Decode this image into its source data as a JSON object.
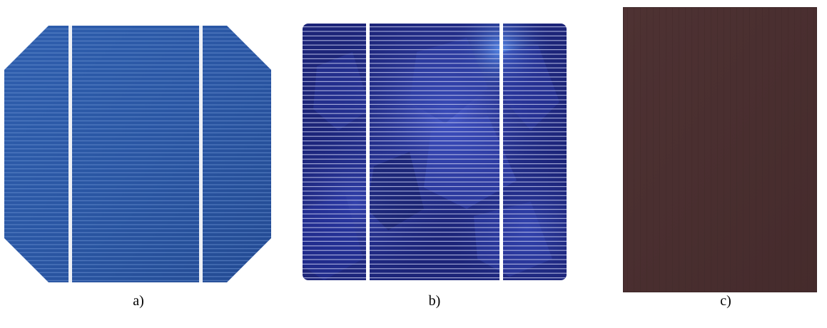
{
  "panels": [
    {
      "id": "a",
      "caption": "a)",
      "material": "monocrystalline-silicon",
      "colors": {
        "base": "#2a56a3",
        "edge": "#1f3f7e",
        "finger": "#5d86c8",
        "busbar": "#f2f4f8"
      }
    },
    {
      "id": "b",
      "caption": "b)",
      "material": "polycrystalline-silicon",
      "colors": {
        "base": "#1e2a86",
        "grain_light": "#4a5ed8",
        "grain_dark": "#101650",
        "finger": "#c8ccee",
        "busbar": "#ffffff"
      }
    },
    {
      "id": "c",
      "caption": "c)",
      "material": "thin-film",
      "colors": {
        "base": "#4a2f30",
        "edge": "#3d2627"
      }
    }
  ]
}
